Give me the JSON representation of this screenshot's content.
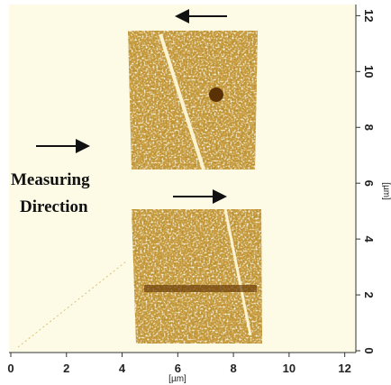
{
  "chart_data": {
    "type": "image",
    "annotation": [
      "Measuring",
      "Direction"
    ],
    "xlabel": "[µm]",
    "ylabel": "[µm]",
    "xlim": [
      0,
      12.4
    ],
    "ylim": [
      0,
      12.4
    ],
    "xticks": [
      0,
      2,
      4,
      6,
      8,
      10,
      12
    ],
    "yticks": [
      0,
      2,
      4,
      6,
      8,
      10,
      12
    ]
  }
}
